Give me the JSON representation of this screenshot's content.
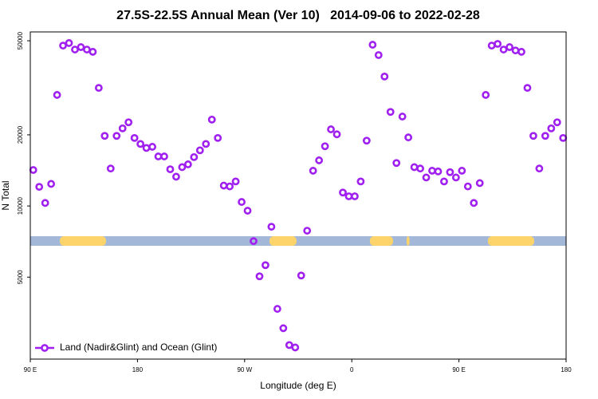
{
  "chart_data": {
    "type": "scatter",
    "title": "27.5S-22.5S Annual Mean (Ver 10)   2014-09-06 to 2022-02-28",
    "x_label": "Longitude (deg E)",
    "y_label": "N Total",
    "xlim": [
      90,
      540
    ],
    "xticks": [
      {
        "value": 90,
        "label": "90 E"
      },
      180,
      {
        "value": 270,
        "label": "90 W"
      },
      {
        "value": 360,
        "label": "0"
      },
      {
        "value": 450,
        "label": "90 E"
      },
      {
        "value": 540,
        "label": "180"
      }
    ],
    "ylim": [
      2250,
      54500
    ],
    "yticks": [
      5000,
      10000,
      20000,
      50000
    ],
    "log_y": true,
    "legend": "lower left",
    "land_color": "#fdd46c",
    "ocean_color": "#a3b8d8",
    "land_lon_ranges": [
      [
        114.8,
        153.6
      ],
      [
        290.9,
        313.6
      ],
      [
        375.2,
        394.7
      ],
      [
        406,
        408.5
      ],
      [
        474.3,
        513.2
      ]
    ],
    "series": [
      {
        "name": "Land (Nadir&Glint) and Ocean (Glint)",
        "color": "#a020f0",
        "x": [
          92.5,
          97.5,
          102.5,
          107.5,
          112.5,
          117.5,
          122.5,
          127.5,
          132.5,
          137.5,
          142.5,
          147.5,
          152.5,
          157.5,
          162.5,
          167.5,
          172.5,
          177.5,
          182.5,
          187.5,
          192.5,
          197.5,
          202.5,
          207.5,
          212.5,
          217.5,
          222.5,
          227.5,
          232.5,
          237.5,
          242.5,
          247.5,
          252.5,
          257.5,
          262.5,
          267.5,
          272.5,
          277.5,
          282.5,
          287.5,
          292.5,
          297.5,
          302.5,
          307.5,
          312.5,
          317.5,
          322.5,
          327.5,
          332.5,
          337.5,
          342.5,
          347.5,
          352.5,
          357.5,
          362.5,
          367.5,
          372.5,
          377.5,
          382.5,
          387.5,
          392.5,
          397.5,
          402.5,
          407.5,
          412.5,
          417.5,
          422.5,
          427.5,
          432.5,
          437.5,
          442.5,
          447.5,
          452.5,
          457.5,
          462.5,
          467.5,
          472.5,
          477.5,
          482.5,
          487.5,
          492.5,
          497.5,
          502.5,
          507.5,
          512.5,
          517.5,
          522.5,
          527.5,
          532.5,
          537.5
        ],
        "values": [
          14200,
          12050,
          10300,
          12400,
          29500,
          47700,
          48900,
          45900,
          47000,
          45900,
          44900,
          31600,
          19800,
          14400,
          19800,
          21300,
          22600,
          19400,
          18300,
          17600,
          17800,
          16200,
          16200,
          14300,
          13300,
          14600,
          15000,
          16100,
          17200,
          18300,
          23200,
          19400,
          12200,
          12100,
          12700,
          10400,
          9550,
          7100,
          5040,
          5620,
          8170,
          3670,
          3040,
          2580,
          2520,
          5080,
          7860,
          14100,
          15600,
          17900,
          21100,
          20100,
          11400,
          10990,
          10990,
          12700,
          18900,
          48100,
          43500,
          35300,
          25000,
          15200,
          23900,
          19500,
          14600,
          14400,
          13200,
          14100,
          14000,
          12700,
          13900,
          13200,
          14100,
          12100,
          10300,
          12500,
          29500,
          47700,
          48500,
          45900,
          47000,
          45500,
          44900,
          31600,
          19800,
          14400,
          19800,
          21300,
          22600,
          19400
        ]
      }
    ]
  }
}
